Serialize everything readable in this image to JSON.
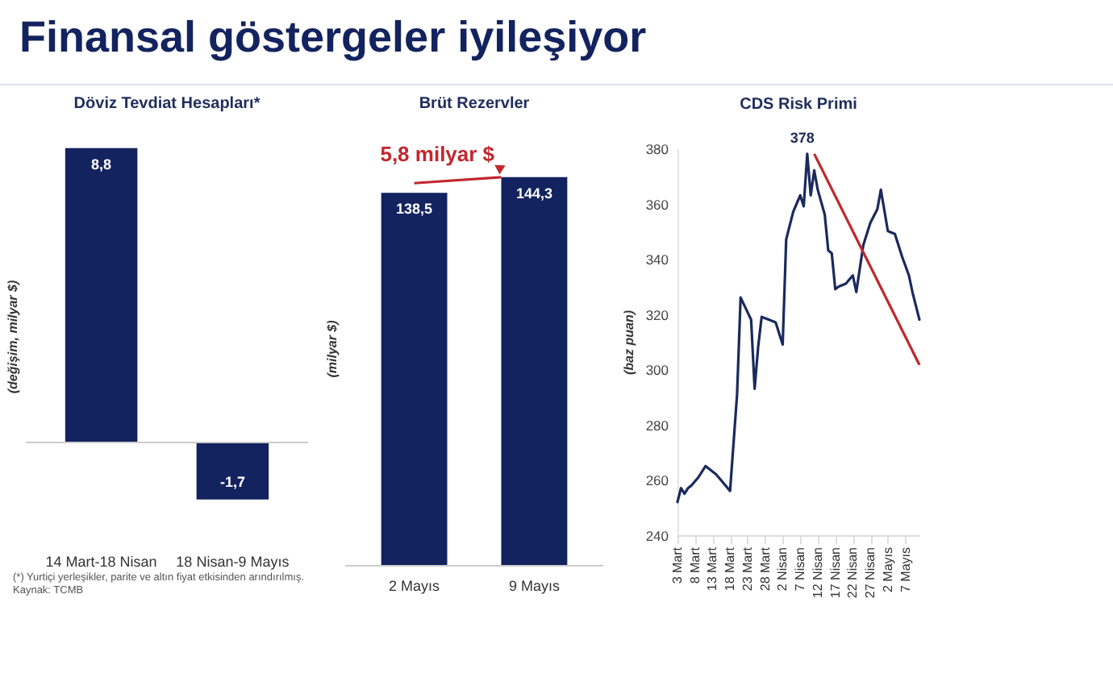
{
  "chart_data": [
    {
      "type": "other",
      "title": "Finansal göstergeler iyileşiyor"
    },
    {
      "type": "bar",
      "title": "Döviz Tevdiat Hesapları*",
      "ylabel": "(değişim, milyar $)",
      "categories": [
        "14 Mart-18 Nisan",
        "18 Nisan-9 Mayıs"
      ],
      "values": [
        8.8,
        -1.7
      ],
      "value_labels": [
        "8,8",
        "-1,7"
      ],
      "color": "#13235f",
      "tick_labels": "x",
      "annotations": [
        "(*) Yurtiçi yerleşikler, parite ve altın fiyat etkisinden arındırılmış.",
        "Kaynak: TCMB"
      ]
    },
    {
      "type": "bar",
      "title": "Brüt Rezervler",
      "ylabel": "(milyar $)",
      "categories": [
        "2 Mayıs",
        "9 Mayıs"
      ],
      "values": [
        138.5,
        144.3
      ],
      "value_labels": [
        "138,5",
        "144,3"
      ],
      "color": "#13235f",
      "tick_labels": "x",
      "annotations": [
        "5,8 milyar $"
      ]
    },
    {
      "type": "line",
      "title": "CDS Risk Primi",
      "ylabel": "(baz puan)",
      "color": "#1a2a5e",
      "grid": false,
      "x": [
        "--03-03",
        "--03-04",
        "--03-05",
        "--03-06",
        "--03-07",
        "--03-09",
        "--03-11",
        "--03-14",
        "--03-18",
        "--03-20",
        "--03-21",
        "--03-24",
        "--03-25",
        "--03-26",
        "--03-27",
        "--03-29",
        "--03-31",
        "--04-02",
        "--04-03",
        "--04-05",
        "--04-07",
        "--04-08",
        "--04-09",
        "--04-10",
        "--04-11",
        "--04-12",
        "--04-14",
        "--04-15",
        "--04-16",
        "--04-17",
        "--04-18",
        "--04-20",
        "--04-22",
        "--04-23",
        "--04-25",
        "--04-27",
        "--04-29",
        "--04-30",
        "--05-02",
        "--05-04",
        "--05-06",
        "--05-08",
        "--05-09",
        "--05-11"
      ],
      "values": [
        252,
        257,
        255,
        257,
        258,
        261,
        265,
        262,
        256,
        291,
        326,
        318,
        293,
        308,
        319,
        318,
        317,
        309,
        347,
        357,
        363,
        359,
        378,
        363,
        372,
        365,
        356,
        343,
        342,
        329,
        330,
        331,
        334,
        328,
        345,
        353,
        358,
        365,
        350,
        349,
        341,
        334,
        328,
        318
      ],
      "xlim": [
        "--03-03",
        "--05-11"
      ],
      "xticks": [
        {
          "value": "--03-03",
          "label": "3 Mart"
        },
        {
          "value": "--03-08",
          "label": "8 Mart"
        },
        {
          "value": "--03-13",
          "label": "13 Mart"
        },
        {
          "value": "--03-18",
          "label": "18 Mart"
        },
        {
          "value": "--03-23",
          "label": "23 Mart"
        },
        {
          "value": "--03-28",
          "label": "28 Mart"
        },
        {
          "value": "--04-02",
          "label": "2 Nisan"
        },
        {
          "value": "--04-07",
          "label": "7 Nisan"
        },
        {
          "value": "--04-12",
          "label": "12 Nisan"
        },
        {
          "value": "--04-17",
          "label": "17 Nisan"
        },
        {
          "value": "--04-22",
          "label": "22 Nisan"
        },
        {
          "value": "--04-27",
          "label": "27 Nisan"
        },
        {
          "value": "--05-02",
          "label": "2 Mayıs"
        },
        {
          "value": "--05-07",
          "label": "7 Mayıs"
        }
      ],
      "ylim": [
        240,
        380
      ],
      "yticks": [
        240,
        260,
        280,
        300,
        320,
        340,
        360,
        380
      ],
      "annotations": [
        {
          "text": "378",
          "x": "--04-09",
          "y": 378
        }
      ]
    }
  ]
}
